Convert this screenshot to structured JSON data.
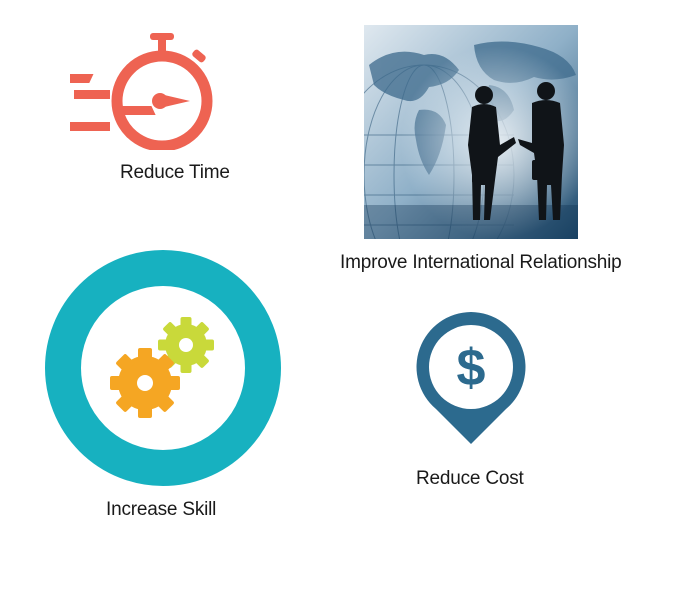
{
  "items": {
    "reduce_time": {
      "label": "Reduce Time",
      "icon": "stopwatch-icon",
      "color": "#ee6352"
    },
    "improve_relationship": {
      "label": "Improve International Relationship",
      "icon": "handshake-world-map-image",
      "color": "#2c4a66"
    },
    "increase_skill": {
      "label": "Increase Skill",
      "icon": "gears-icon",
      "color": "#17b1c0",
      "gear_colors": [
        "#f5a623",
        "#c9d93a"
      ]
    },
    "reduce_cost": {
      "label": "Reduce Cost",
      "icon": "dollar-pin-icon",
      "color": "#2c6a8e",
      "symbol": "$"
    }
  }
}
